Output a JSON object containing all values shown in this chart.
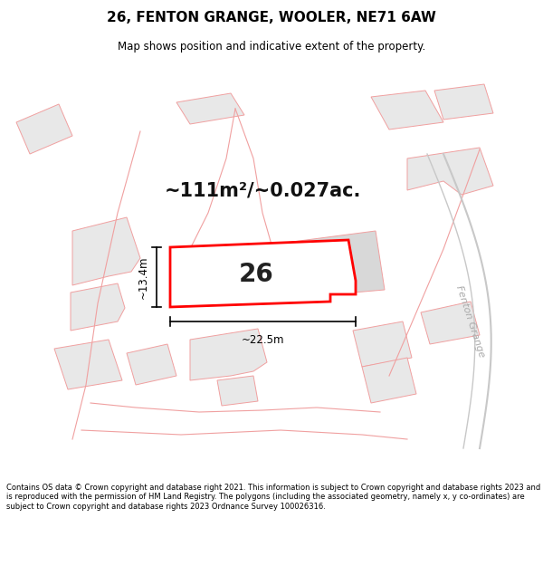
{
  "title": "26, FENTON GRANGE, WOOLER, NE71 6AW",
  "subtitle": "Map shows position and indicative extent of the property.",
  "footer": "Contains OS data © Crown copyright and database right 2021. This information is subject to Crown copyright and database rights 2023 and is reproduced with the permission of HM Land Registry. The polygons (including the associated geometry, namely x, y co-ordinates) are subject to Crown copyright and database rights 2023 Ordnance Survey 100026316.",
  "area_label": "~111m²/~0.027ac.",
  "plot_number": "26",
  "dim_width": "~22.5m",
  "dim_height": "~13.4m",
  "bg_color": "#ffffff",
  "map_bg": "#ffffff",
  "highlight_color": "#ff0000",
  "building_fill": "#e8e8e8",
  "building_edge": "#f0a0a0",
  "road_color": "#c8c8c8",
  "road_label_color": "#aaaaaa",
  "dim_color": "#000000"
}
